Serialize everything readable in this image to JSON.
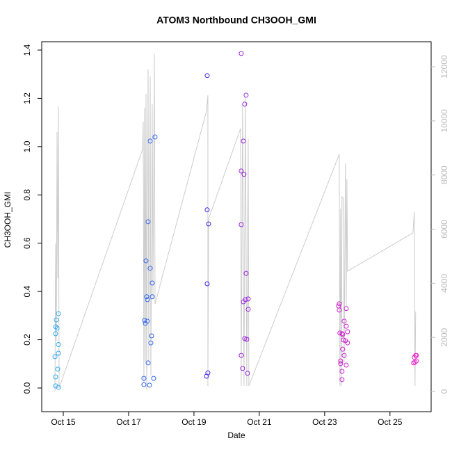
{
  "chart_data": {
    "type": "scatter",
    "title": "ATOM3 Northbound CH3OOH_GMI",
    "x_label": "Date",
    "y_label": "CH3OOH_GMI",
    "xlim": [
      14.34,
      26.26
    ],
    "xticks": [
      {
        "value": 15,
        "label": "Oct 15"
      },
      {
        "value": 17,
        "label": "Oct 17"
      },
      {
        "value": 19,
        "label": "Oct 19"
      },
      {
        "value": 21,
        "label": "Oct 21"
      },
      {
        "value": 23,
        "label": "Oct 23"
      },
      {
        "value": 25,
        "label": "Oct 25"
      }
    ],
    "ylim": [
      -0.098,
      1.4346
    ],
    "yticks": [
      {
        "value": 0,
        "label": "0.0"
      },
      0.2,
      0.4,
      0.6,
      0.8,
      {
        "value": 1,
        "label": "1.0"
      },
      1.2,
      1.4
    ],
    "y2lim": [
      -745,
      12925
    ],
    "y2ticks": [
      0,
      2000,
      4000,
      6000,
      8000,
      10000,
      12000
    ],
    "series": [
      {
        "type": "line",
        "axis": "y2",
        "color": "#cccccc",
        "x": [
          14.745,
          14.766,
          14.787,
          14.809,
          14.83,
          14.851,
          14.872,
          17.426,
          17.447,
          17.468,
          17.489,
          17.511,
          17.532,
          17.553,
          17.596,
          17.617,
          17.66,
          17.681,
          17.723,
          17.745,
          17.787,
          17.809,
          19.383,
          19.426,
          19.426,
          19.447,
          20.426,
          20.447,
          20.489,
          20.532,
          20.574,
          20.617,
          20.66,
          20.681,
          23.447,
          23.468,
          23.489,
          23.511,
          23.532,
          23.574,
          23.596,
          23.638,
          23.66,
          23.681,
          23.702,
          25.702,
          25.745,
          25.766,
          25.787
        ],
        "values": [
          0,
          5474,
          1876,
          9586,
          4189,
          10537,
          129,
          8944,
          9972,
          334,
          10486,
          1105,
          11000,
          77,
          11899,
          1105,
          11642,
          591,
          10614,
          3418,
          12490,
          3238,
          10357,
          10948,
          206,
          6374,
          9715,
          206,
          10614,
          206,
          10871,
          206,
          9329,
          206,
          8764,
          206,
          6759,
          206,
          7196,
          7145,
          1105,
          8430,
          3161,
          7839,
          4446,
          5860,
          6631,
          206,
          2956
        ]
      },
      {
        "type": "scatter",
        "color": "#33aaee",
        "x": [
          14.745,
          14.766,
          14.766,
          14.787,
          14.809,
          14.851,
          14.851,
          14.851,
          14.83,
          14.766,
          14.766,
          14.851
        ],
        "values": [
          0.13,
          0.225,
          0.254,
          0.282,
          0.248,
          0.308,
          0.18,
          0.144,
          0.078,
          0.046,
          0.009,
          0.003
        ]
      },
      {
        "type": "scatter",
        "color": "#3366ee",
        "x": [
          17.468,
          17.468,
          17.511,
          17.489,
          17.574,
          17.553,
          17.574,
          17.532,
          17.596,
          17.596,
          17.638,
          17.66,
          17.723,
          17.681,
          17.702,
          17.723,
          17.766,
          17.66,
          17.809
        ],
        "values": [
          0.014,
          0.04,
          0.268,
          0.28,
          0.277,
          0.378,
          0.366,
          0.527,
          0.689,
          0.104,
          0.012,
          0.496,
          0.435,
          0.187,
          0.216,
          0.378,
          0.04,
          1.023,
          1.04
        ]
      },
      {
        "type": "scatter",
        "color": "#4422ee",
        "x": [
          19.404,
          19.404,
          19.447,
          19.404,
          19.426,
          19.383
        ],
        "values": [
          1.294,
          0.738,
          0.68,
          0.432,
          0.063,
          0.049
        ]
      },
      {
        "type": "scatter",
        "color": "#9922dd",
        "x": [
          20.447,
          20.596,
          20.553,
          20.511,
          20.447,
          20.532,
          20.447,
          20.596,
          20.66,
          20.574,
          20.511,
          20.553,
          20.617,
          20.66,
          20.447,
          20.489,
          20.638
        ],
        "values": [
          1.386,
          1.213,
          1.176,
          1.023,
          0.899,
          0.885,
          0.677,
          0.475,
          0.369,
          0.366,
          0.357,
          0.205,
          0.202,
          0.326,
          0.135,
          0.081,
          0.061
        ]
      },
      {
        "type": "scatter",
        "color": "#cc22cc",
        "x": [
          23.447,
          23.426,
          23.447,
          23.66,
          23.596,
          23.66,
          23.702,
          23.468,
          23.532,
          23.553,
          23.574,
          23.638,
          23.702,
          23.553,
          23.596,
          23.489,
          23.489,
          23.66,
          23.532,
          23.532
        ],
        "values": [
          0.349,
          0.34,
          0.323,
          0.329,
          0.277,
          0.256,
          0.233,
          0.228,
          0.225,
          0.222,
          0.199,
          0.196,
          0.187,
          0.161,
          0.135,
          0.112,
          0.101,
          0.095,
          0.069,
          0.035
        ]
      },
      {
        "type": "scatter",
        "color": "#ee22cc",
        "x": [
          25.745,
          25.787,
          25.809,
          25.766,
          25.809,
          25.723
        ],
        "values": [
          0.127,
          0.135,
          0.135,
          0.107,
          0.112,
          0.104
        ]
      }
    ]
  }
}
